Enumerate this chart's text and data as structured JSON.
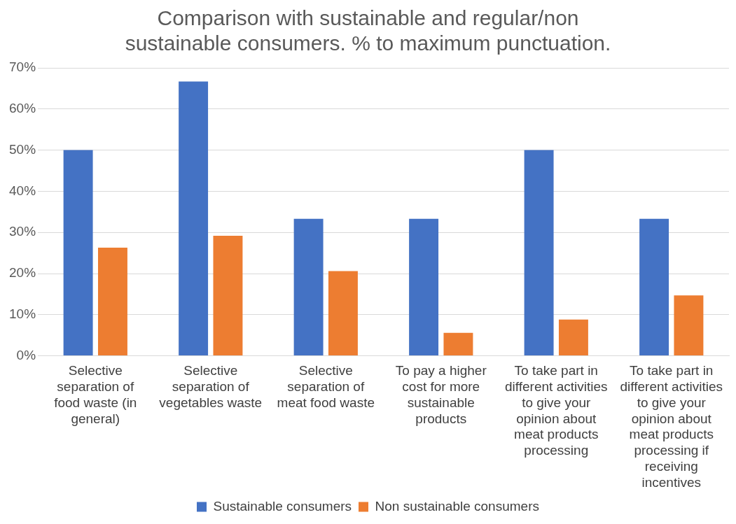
{
  "chart_data": {
    "type": "bar",
    "title": "Comparison with sustainable and regular/non sustainable consumers. % to maximum punctuation.",
    "categories": [
      "Selective separation of food waste (in general)",
      "Selective separation of vegetables waste",
      "Selective separation of meat food waste",
      "To pay a higher cost for more sustainable products",
      "To take part in different activities to give your opinion about meat products processing",
      "To take part in different activities to give your opinion about meat products processing if receiving incentives"
    ],
    "series": [
      {
        "name": "Sustainable consumers",
        "color": "#4472c4",
        "values": [
          50,
          66.7,
          33.3,
          33.3,
          50,
          33.3
        ]
      },
      {
        "name": "Non sustainable consumers",
        "color": "#ed7d31",
        "values": [
          26.3,
          29.2,
          20.6,
          5.6,
          8.8,
          14.7
        ]
      }
    ],
    "ylim": [
      0,
      70
    ],
    "yticks": [
      {
        "value": 0,
        "label": "0%"
      },
      {
        "value": 10,
        "label": "10%"
      },
      {
        "value": 20,
        "label": "20%"
      },
      {
        "value": 30,
        "label": "30%"
      },
      {
        "value": 40,
        "label": "40%"
      },
      {
        "value": 50,
        "label": "50%"
      },
      {
        "value": 60,
        "label": "60%"
      },
      {
        "value": 70,
        "label": "70%"
      }
    ],
    "grid": "y",
    "legend": "bottom"
  }
}
